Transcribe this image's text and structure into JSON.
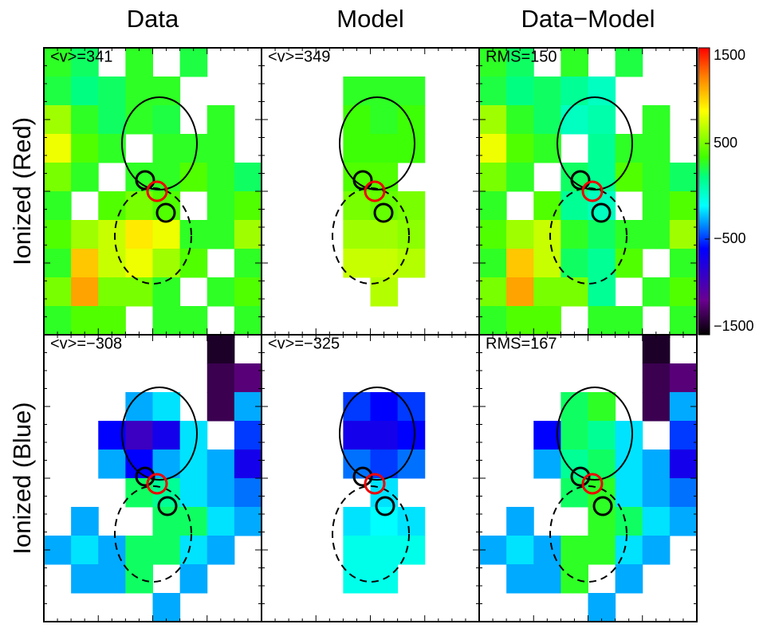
{
  "chart_data": {
    "type": "heatmap",
    "columns": [
      "Data",
      "Model",
      "Data−Model"
    ],
    "rows": [
      "Ionized (Red)",
      "Ionized (Blue)"
    ],
    "panels": [
      {
        "label": "<v>=341",
        "values": [
          [
            300,
            200,
            null,
            300,
            null,
            250,
            null,
            null
          ],
          [
            250,
            150,
            200,
            300,
            300,
            null,
            null,
            null
          ],
          [
            600,
            300,
            200,
            300,
            250,
            null,
            300,
            null
          ],
          [
            800,
            400,
            300,
            null,
            300,
            300,
            300,
            null
          ],
          [
            500,
            300,
            null,
            300,
            300,
            400,
            300,
            200
          ],
          [
            300,
            null,
            400,
            500,
            400,
            null,
            300,
            400
          ],
          [
            400,
            600,
            700,
            900,
            800,
            300,
            300,
            600
          ],
          [
            300,
            1000,
            700,
            800,
            600,
            400,
            null,
            300
          ],
          [
            500,
            1100,
            500,
            500,
            300,
            null,
            300,
            400
          ],
          [
            300,
            400,
            400,
            null,
            300,
            300,
            null,
            300
          ]
        ]
      },
      {
        "label": "<v>=349",
        "values": [
          [
            null,
            null,
            null,
            null,
            null,
            null,
            null,
            null
          ],
          [
            null,
            null,
            null,
            300,
            300,
            300,
            null,
            null
          ],
          [
            null,
            null,
            null,
            350,
            300,
            350,
            null,
            null
          ],
          [
            null,
            null,
            null,
            350,
            350,
            350,
            null,
            null
          ],
          [
            null,
            null,
            null,
            400,
            400,
            null,
            null,
            null
          ],
          [
            null,
            null,
            null,
            500,
            450,
            500,
            null,
            null
          ],
          [
            null,
            null,
            null,
            600,
            600,
            550,
            null,
            null
          ],
          [
            null,
            null,
            null,
            700,
            700,
            650,
            null,
            null
          ],
          [
            null,
            null,
            null,
            null,
            650,
            null,
            null,
            null
          ],
          [
            null,
            null,
            null,
            null,
            null,
            null,
            null,
            null
          ]
        ]
      },
      {
        "label": "RMS=150",
        "values": [
          [
            300,
            200,
            null,
            300,
            null,
            250,
            null,
            null
          ],
          [
            250,
            150,
            200,
            100,
            0,
            null,
            null,
            null
          ],
          [
            600,
            300,
            200,
            0,
            50,
            null,
            300,
            null
          ],
          [
            800,
            400,
            300,
            null,
            100,
            300,
            300,
            null
          ],
          [
            500,
            300,
            null,
            200,
            100,
            400,
            300,
            200
          ],
          [
            300,
            null,
            400,
            100,
            0,
            null,
            300,
            400
          ],
          [
            400,
            600,
            700,
            300,
            200,
            300,
            300,
            600
          ],
          [
            300,
            1000,
            700,
            200,
            100,
            400,
            null,
            300
          ],
          [
            500,
            1100,
            500,
            500,
            100,
            null,
            300,
            400
          ],
          [
            300,
            400,
            400,
            null,
            300,
            300,
            null,
            300
          ]
        ]
      },
      {
        "label": "<v>=−308",
        "values": [
          [
            null,
            null,
            null,
            null,
            null,
            null,
            -1400,
            null
          ],
          [
            null,
            null,
            null,
            null,
            null,
            null,
            -1300,
            -1200
          ],
          [
            null,
            null,
            null,
            -300,
            -200,
            null,
            -1300,
            -300
          ],
          [
            null,
            null,
            -600,
            -900,
            -700,
            -200,
            null,
            -500
          ],
          [
            null,
            null,
            -300,
            -600,
            -300,
            -200,
            -300,
            -700
          ],
          [
            null,
            null,
            null,
            200,
            100,
            -200,
            -300,
            -400
          ],
          [
            null,
            -300,
            null,
            null,
            200,
            200,
            -200,
            -300
          ],
          [
            -300,
            -200,
            -300,
            200,
            200,
            -200,
            -300,
            null
          ],
          [
            null,
            -300,
            -300,
            200,
            null,
            -300,
            null,
            null
          ],
          [
            null,
            null,
            null,
            null,
            -300,
            null,
            null,
            null
          ]
        ]
      },
      {
        "label": "<v>=−325",
        "values": [
          [
            null,
            null,
            null,
            null,
            null,
            null,
            null,
            null
          ],
          [
            null,
            null,
            null,
            null,
            null,
            null,
            null,
            null
          ],
          [
            null,
            null,
            null,
            -500,
            -600,
            -500,
            null,
            null
          ],
          [
            null,
            null,
            null,
            -700,
            -700,
            -600,
            null,
            null
          ],
          [
            null,
            null,
            null,
            -400,
            -500,
            -400,
            null,
            null
          ],
          [
            null,
            null,
            null,
            null,
            -200,
            null,
            null,
            null
          ],
          [
            null,
            null,
            null,
            -200,
            -150,
            -200,
            null,
            null
          ],
          [
            null,
            null,
            null,
            -100,
            -100,
            -100,
            null,
            null
          ],
          [
            null,
            null,
            null,
            -100,
            -100,
            null,
            null,
            null
          ],
          [
            null,
            null,
            null,
            null,
            null,
            null,
            null,
            null
          ]
        ]
      },
      {
        "label": "RMS=167",
        "values": [
          [
            null,
            null,
            null,
            null,
            null,
            null,
            -1400,
            null
          ],
          [
            null,
            null,
            null,
            null,
            null,
            null,
            -1300,
            -1200
          ],
          [
            null,
            null,
            null,
            200,
            300,
            null,
            -1300,
            -300
          ],
          [
            null,
            null,
            -600,
            200,
            100,
            -200,
            null,
            -500
          ],
          [
            null,
            null,
            -300,
            100,
            200,
            -200,
            -300,
            -700
          ],
          [
            null,
            null,
            null,
            200,
            300,
            -200,
            -300,
            -400
          ],
          [
            null,
            -300,
            null,
            null,
            300,
            200,
            -200,
            -300
          ],
          [
            -300,
            -200,
            -300,
            300,
            300,
            -200,
            -300,
            null
          ],
          [
            null,
            -300,
            -300,
            300,
            null,
            -300,
            null,
            null
          ],
          [
            null,
            null,
            null,
            null,
            -300,
            null,
            null,
            null
          ]
        ]
      }
    ],
    "zlim": [
      -1500,
      1500
    ],
    "zticks": [
      {
        "value": -1500,
        "label": "−1500"
      },
      {
        "value": -500,
        "label": "−500"
      },
      500,
      1500
    ]
  }
}
